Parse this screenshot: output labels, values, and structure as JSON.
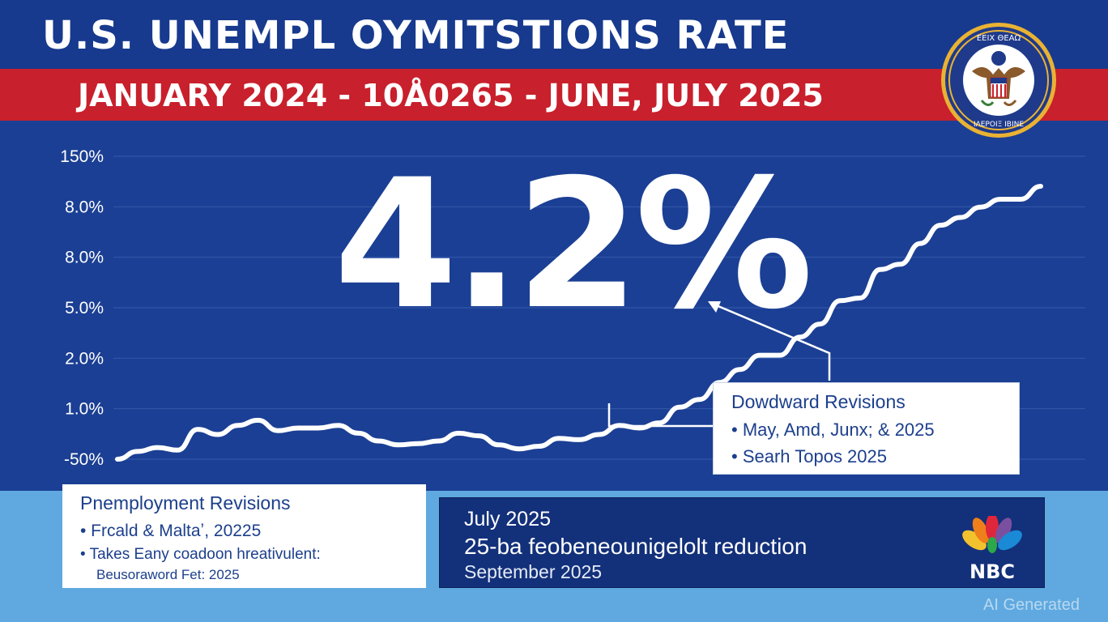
{
  "header": {
    "title": "U.S. UNEMPL OYMITSTIONS RATE",
    "subtitle": "JANUARY 2024 - 10Å0265 - JUNE, JULY 2025"
  },
  "seal": {
    "icon": "seal-icon",
    "text_top": "ΕΕΙΧ ΘΕΑΩ",
    "text_bottom": "ΙΛΕΡΟΙΞ ΙΒΙΝΕ"
  },
  "headline_value": "4.2%",
  "chart_data": {
    "type": "line",
    "title": "",
    "xlabel": "",
    "ylabel": "",
    "y_tick_labels": [
      "150%",
      "8.0%",
      "8.0%",
      "5.0%",
      "2.0%",
      "1.0%",
      "-50%"
    ],
    "grid": true,
    "series": [
      {
        "values": [
          -50,
          -20,
          -5,
          -15,
          65,
          45,
          80,
          100,
          60,
          70,
          70,
          80,
          50,
          20,
          5,
          10,
          20,
          50,
          40,
          5,
          -10,
          0,
          30,
          25,
          45,
          80,
          70,
          90,
          150,
          180,
          245,
          295,
          350,
          350,
          420,
          470,
          560,
          570,
          680,
          700,
          780,
          850,
          880,
          920,
          950,
          950,
          1000
        ]
      }
    ],
    "color": "#ffffff"
  },
  "callout": {
    "heading": "Dowdward Revisions",
    "bullets": [
      "• May, Amd, Junx; & 2025",
      "• Searh Topos 2025"
    ]
  },
  "box_left": {
    "heading": "Pnemployment Revisions",
    "bullets": [
      "• Frcald & Maltaʼ, 20225",
      "• Takes Eany coadoon hreativulent:"
    ],
    "sub": "Beusoraword Fet: 2025"
  },
  "box_right": {
    "line1": "July 2025",
    "line2": "25-ba feobeneounigelolt reduction",
    "line3": "September 2025",
    "logo_text": "NBC",
    "logo_icon": "nbc-peacock-icon"
  },
  "watermark": "AI Generated",
  "colors": {
    "navy": "#1b3f94",
    "red": "#c8202c",
    "sky": "#5fa9e0",
    "dark_navy": "#13307a"
  }
}
